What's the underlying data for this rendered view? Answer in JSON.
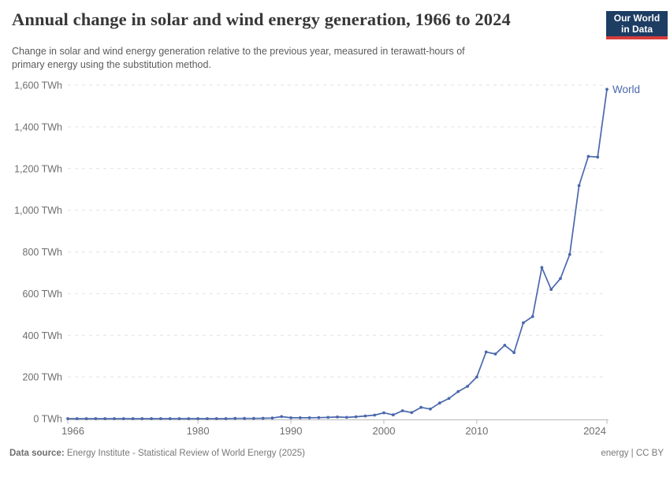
{
  "header": {
    "title": "Annual change in solar and wind energy generation, 1966 to 2024",
    "subtitle_line1": "Change in solar and wind energy generation relative to the previous year, measured in terawatt-hours of",
    "subtitle_line2": "primary energy using the substitution method.",
    "logo": {
      "line1": "Our World",
      "line2": "in Data"
    }
  },
  "footer": {
    "datasource_label": "Data source:",
    "datasource_text": " Energy Institute - Statistical Review of World Energy (2025)",
    "license_text": "energy | CC BY"
  },
  "colors": {
    "series_line": "#4a68ac",
    "logo_bg": "#1d3d63",
    "logo_accent": "#d73c3c",
    "gridline": "#e2e2e2",
    "axis": "#b8b8b8",
    "tick_label": "#6e6e6e",
    "title_text": "#383838",
    "subtitle_text": "#5b5b5b",
    "footer_text": "#787878"
  },
  "chart_data": {
    "type": "line",
    "title": "Annual change in solar and wind energy generation, 1966 to 2024",
    "xlabel": "",
    "ylabel": "",
    "unit": "TWh",
    "xlim": [
      1966,
      2024
    ],
    "ylim": [
      0,
      1600
    ],
    "grid": "horizontal-dashed",
    "legend_position": "end-of-line",
    "x_ticks": [
      1966,
      1980,
      1990,
      2000,
      2010,
      2024
    ],
    "y_tick_values": [
      0,
      200,
      400,
      600,
      800,
      1000,
      1200,
      1400,
      1600
    ],
    "y_tick_labels": [
      "0 TWh",
      "200 TWh",
      "400 TWh",
      "600 TWh",
      "800 TWh",
      "1,000 TWh",
      "1,200 TWh",
      "1,400 TWh",
      "1,600 TWh"
    ],
    "series": [
      {
        "name": "World",
        "color": "#4a68ac",
        "x": [
          1966,
          1967,
          1968,
          1969,
          1970,
          1971,
          1972,
          1973,
          1974,
          1975,
          1976,
          1977,
          1978,
          1979,
          1980,
          1981,
          1982,
          1983,
          1984,
          1985,
          1986,
          1987,
          1988,
          1989,
          1990,
          1991,
          1992,
          1993,
          1994,
          1995,
          1996,
          1997,
          1998,
          1999,
          2000,
          2001,
          2002,
          2003,
          2004,
          2005,
          2006,
          2007,
          2008,
          2009,
          2010,
          2011,
          2012,
          2013,
          2014,
          2015,
          2016,
          2017,
          2018,
          2019,
          2020,
          2021,
          2022,
          2023,
          2024
        ],
        "y": [
          0,
          0,
          0,
          0,
          0,
          0,
          0,
          0,
          0,
          0,
          0,
          0,
          0,
          0,
          0,
          0,
          0,
          0,
          1,
          1,
          1,
          2,
          3,
          10,
          4,
          4,
          4,
          5,
          6,
          8,
          6,
          9,
          13,
          17,
          28,
          18,
          38,
          29,
          54,
          46,
          75,
          97,
          130,
          155,
          200,
          320,
          310,
          352,
          317,
          460,
          490,
          725,
          620,
          672,
          788,
          1118,
          1258,
          1255,
          1580
        ]
      }
    ]
  }
}
